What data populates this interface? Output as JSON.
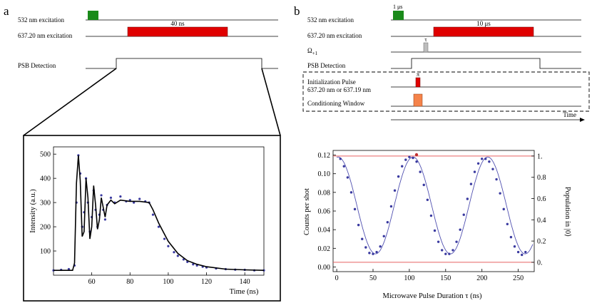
{
  "panels": {
    "a": "a",
    "b": "b"
  },
  "panel_a": {
    "timing": {
      "rows": [
        {
          "label": "532 nm excitation"
        },
        {
          "label": "637.20 nm excitation",
          "pulse_label": "40 ns"
        },
        {
          "label": "PSB Detection"
        }
      ],
      "colors": {
        "green": "#1a8a1a",
        "red": "#e00000"
      }
    }
  },
  "panel_b": {
    "timing": {
      "rows": [
        {
          "label": "532 nm excitation",
          "pulse_label": "1 μs"
        },
        {
          "label": "637.20 nm excitation",
          "pulse_label": "10 μs"
        },
        {
          "label": "Ω+1",
          "label_main": "Ω",
          "label_sub": "+1",
          "pulse_label": "τ"
        },
        {
          "label": "PSB Detection"
        },
        {
          "label": "Initialization Pulse",
          "label2": "637.20 nm or 637.19 nm",
          "pulse_label": "π"
        },
        {
          "label": "Conditioning Window"
        }
      ],
      "time_label": "Time",
      "colors": {
        "green": "#1a8a1a",
        "red": "#e00000",
        "gray": "#bdbdbd",
        "orange": "#f5834a"
      }
    }
  },
  "chart_data": [
    {
      "type": "scatter",
      "title": "",
      "xlabel": "Time (ns)",
      "ylabel": "Intensity (a.u.)",
      "xlim": [
        40,
        150
      ],
      "ylim": [
        0,
        530
      ],
      "xticks": [
        "60",
        "80",
        "100",
        "120",
        "140"
      ],
      "yticks": [
        "100",
        "200",
        "300",
        "400",
        "500"
      ],
      "series": [
        {
          "kind": "points",
          "color": "#3a3aa0",
          "x": [
            40,
            44,
            48,
            51,
            52,
            53,
            54,
            55,
            56,
            57,
            58,
            59,
            60,
            61,
            62,
            63,
            64,
            65,
            66,
            67,
            68,
            70,
            72,
            75,
            78,
            80,
            82,
            85,
            88,
            90,
            92,
            95,
            98,
            100,
            103,
            105,
            108,
            110,
            113,
            115,
            118,
            120,
            125,
            130,
            135,
            140,
            145,
            150
          ],
          "y": [
            20,
            22,
            25,
            40,
            300,
            495,
            420,
            200,
            260,
            400,
            300,
            180,
            240,
            350,
            270,
            200,
            250,
            330,
            270,
            230,
            290,
            320,
            300,
            325,
            305,
            310,
            300,
            315,
            305,
            300,
            250,
            200,
            150,
            120,
            95,
            80,
            65,
            55,
            45,
            40,
            35,
            32,
            28,
            25,
            23,
            22,
            20,
            20
          ]
        },
        {
          "kind": "fit",
          "color": "#000000",
          "x": [
            40,
            50,
            51,
            52,
            53,
            54,
            55,
            56,
            57,
            58,
            59,
            60,
            61,
            62,
            63,
            64,
            65,
            66,
            67,
            68,
            70,
            72,
            75,
            80,
            85,
            90,
            92,
            95,
            100,
            105,
            110,
            115,
            120,
            130,
            140,
            150
          ],
          "y": [
            20,
            20,
            50,
            380,
            495,
            390,
            160,
            180,
            400,
            320,
            150,
            200,
            370,
            290,
            190,
            230,
            320,
            280,
            240,
            290,
            310,
            295,
            310,
            305,
            305,
            300,
            270,
            215,
            140,
            90,
            60,
            45,
            35,
            25,
            22,
            20
          ]
        }
      ]
    },
    {
      "type": "scatter",
      "title": "",
      "xlabel": "Microwave Pulse Duration τ (ns)",
      "ylabel": "Counts per shot",
      "ylabel_right": "Population in |0⟩",
      "xlim": [
        -5,
        272
      ],
      "ylim": [
        -0.005,
        0.125
      ],
      "xticks": [
        "0",
        "50",
        "100",
        "150",
        "200",
        "250"
      ],
      "yticks": [
        "0.00",
        "0.02",
        "0.04",
        "0.06",
        "0.08",
        "0.10",
        "0.12"
      ],
      "yticks_right": [
        "0.",
        "0.2",
        "0.4",
        "0.6",
        "0.8",
        "1."
      ],
      "hlines": [
        0.119,
        0.005
      ],
      "hline_color": "#e86060",
      "series": [
        {
          "kind": "points",
          "color": "#3a3aa0",
          "x": [
            5,
            10,
            15,
            20,
            25,
            30,
            35,
            40,
            45,
            50,
            55,
            60,
            65,
            70,
            75,
            80,
            85,
            90,
            95,
            100,
            105,
            110,
            115,
            120,
            125,
            130,
            135,
            140,
            145,
            150,
            155,
            160,
            165,
            170,
            175,
            180,
            185,
            190,
            195,
            200,
            205,
            210,
            215,
            220,
            225,
            230,
            235,
            240,
            245,
            250,
            255,
            260
          ],
          "y": [
            0.116,
            0.108,
            0.096,
            0.08,
            0.062,
            0.045,
            0.03,
            0.021,
            0.015,
            0.014,
            0.016,
            0.022,
            0.033,
            0.048,
            0.065,
            0.082,
            0.097,
            0.108,
            0.115,
            0.118,
            0.117,
            0.113,
            0.102,
            0.088,
            0.072,
            0.055,
            0.039,
            0.027,
            0.018,
            0.014,
            0.014,
            0.018,
            0.027,
            0.04,
            0.056,
            0.073,
            0.089,
            0.102,
            0.111,
            0.116,
            0.116,
            0.113,
            0.105,
            0.094,
            0.079,
            0.062,
            0.046,
            0.032,
            0.022,
            0.016,
            0.013,
            0.016
          ]
        },
        {
          "kind": "fit",
          "color": "#5050b0",
          "formula": "0.066+0.052*cos(2π(x-105)/103)"
        }
      ]
    }
  ]
}
